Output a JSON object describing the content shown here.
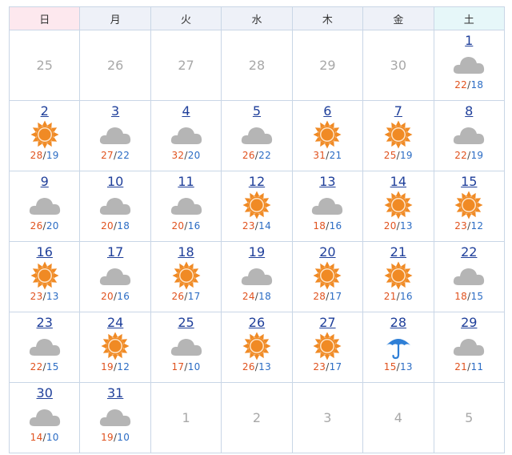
{
  "weekdays": [
    "日",
    "月",
    "火",
    "水",
    "木",
    "金",
    "土"
  ],
  "weeks": [
    [
      {
        "type": "empty",
        "label": "25"
      },
      {
        "type": "empty",
        "label": "26"
      },
      {
        "type": "empty",
        "label": "27"
      },
      {
        "type": "empty",
        "label": "28"
      },
      {
        "type": "empty",
        "label": "29"
      },
      {
        "type": "empty",
        "label": "30"
      },
      {
        "type": "day",
        "day": "1",
        "icon": "cloud",
        "hi": "22",
        "lo": "18"
      }
    ],
    [
      {
        "type": "day",
        "day": "2",
        "icon": "sun",
        "hi": "28",
        "lo": "19"
      },
      {
        "type": "day",
        "day": "3",
        "icon": "cloud",
        "hi": "27",
        "lo": "22"
      },
      {
        "type": "day",
        "day": "4",
        "icon": "cloud",
        "hi": "32",
        "lo": "20"
      },
      {
        "type": "day",
        "day": "5",
        "icon": "cloud",
        "hi": "26",
        "lo": "22"
      },
      {
        "type": "day",
        "day": "6",
        "icon": "sun",
        "hi": "31",
        "lo": "21"
      },
      {
        "type": "day",
        "day": "7",
        "icon": "sun",
        "hi": "25",
        "lo": "19"
      },
      {
        "type": "day",
        "day": "8",
        "icon": "cloud",
        "hi": "22",
        "lo": "19"
      }
    ],
    [
      {
        "type": "day",
        "day": "9",
        "icon": "cloud",
        "hi": "26",
        "lo": "20"
      },
      {
        "type": "day",
        "day": "10",
        "icon": "cloud",
        "hi": "20",
        "lo": "18"
      },
      {
        "type": "day",
        "day": "11",
        "icon": "cloud",
        "hi": "20",
        "lo": "16"
      },
      {
        "type": "day",
        "day": "12",
        "icon": "sun",
        "hi": "23",
        "lo": "14"
      },
      {
        "type": "day",
        "day": "13",
        "icon": "cloud",
        "hi": "18",
        "lo": "16"
      },
      {
        "type": "day",
        "day": "14",
        "icon": "sun",
        "hi": "20",
        "lo": "13"
      },
      {
        "type": "day",
        "day": "15",
        "icon": "sun",
        "hi": "23",
        "lo": "12"
      }
    ],
    [
      {
        "type": "day",
        "day": "16",
        "icon": "sun",
        "hi": "23",
        "lo": "13"
      },
      {
        "type": "day",
        "day": "17",
        "icon": "cloud",
        "hi": "20",
        "lo": "16"
      },
      {
        "type": "day",
        "day": "18",
        "icon": "sun",
        "hi": "26",
        "lo": "17"
      },
      {
        "type": "day",
        "day": "19",
        "icon": "cloud",
        "hi": "24",
        "lo": "18"
      },
      {
        "type": "day",
        "day": "20",
        "icon": "sun",
        "hi": "28",
        "lo": "17"
      },
      {
        "type": "day",
        "day": "21",
        "icon": "sun",
        "hi": "21",
        "lo": "16"
      },
      {
        "type": "day",
        "day": "22",
        "icon": "cloud",
        "hi": "18",
        "lo": "15"
      }
    ],
    [
      {
        "type": "day",
        "day": "23",
        "icon": "cloud",
        "hi": "22",
        "lo": "15"
      },
      {
        "type": "day",
        "day": "24",
        "icon": "sun",
        "hi": "19",
        "lo": "12"
      },
      {
        "type": "day",
        "day": "25",
        "icon": "cloud",
        "hi": "17",
        "lo": "10"
      },
      {
        "type": "day",
        "day": "26",
        "icon": "sun",
        "hi": "26",
        "lo": "13"
      },
      {
        "type": "day",
        "day": "27",
        "icon": "sun",
        "hi": "23",
        "lo": "17"
      },
      {
        "type": "day",
        "day": "28",
        "icon": "umbrella",
        "hi": "15",
        "lo": "13"
      },
      {
        "type": "day",
        "day": "29",
        "icon": "cloud",
        "hi": "21",
        "lo": "11"
      }
    ],
    [
      {
        "type": "day",
        "day": "30",
        "icon": "cloud",
        "hi": "14",
        "lo": "10"
      },
      {
        "type": "day",
        "day": "31",
        "icon": "cloud",
        "hi": "19",
        "lo": "10"
      },
      {
        "type": "empty",
        "label": "1"
      },
      {
        "type": "empty",
        "label": "2"
      },
      {
        "type": "empty",
        "label": "3"
      },
      {
        "type": "empty",
        "label": "4"
      },
      {
        "type": "empty",
        "label": "5"
      }
    ]
  ],
  "colors": {
    "high_temp": "#e0521e",
    "low_temp": "#2b6cc4",
    "sun": "#f08a24",
    "cloud": "#b5b5b5",
    "umbrella": "#2f7fd6",
    "day_link": "#1f3f9a",
    "border": "#c9d6e6"
  }
}
